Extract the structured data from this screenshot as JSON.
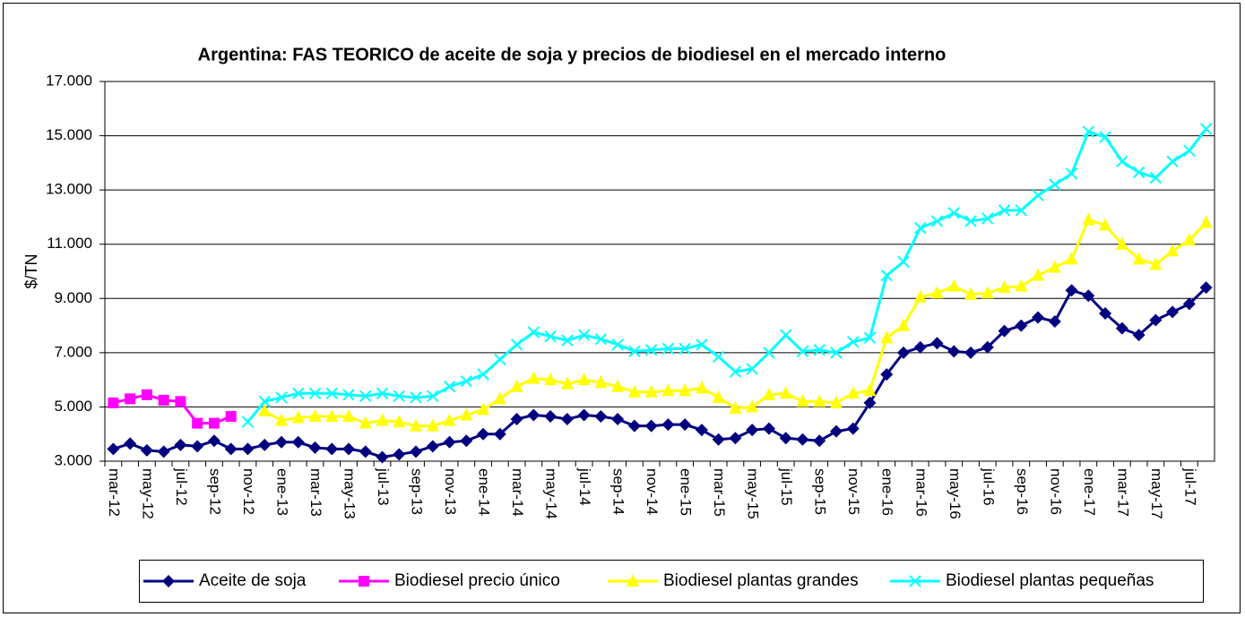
{
  "chart_data": {
    "type": "line",
    "title": "Argentina: FAS TEORICO de aceite de soja y precios de biodiesel en el mercado interno",
    "y_label": "$/TN",
    "categories": [
      "mar-12",
      null,
      "may-12",
      null,
      "jul-12",
      null,
      "sep-12",
      null,
      "nov-12",
      null,
      "ene-13",
      null,
      "mar-13",
      null,
      "may-13",
      null,
      "jul-13",
      null,
      "sep-13",
      null,
      "nov-13",
      null,
      "ene-14",
      null,
      "mar-14",
      null,
      "may-14",
      null,
      "jul-14",
      null,
      "sep-14",
      null,
      "nov-14",
      null,
      "ene-15",
      null,
      "mar-15",
      null,
      "may-15",
      null,
      "jul-15",
      null,
      "sep-15",
      null,
      "nov-15",
      null,
      "ene-16",
      null,
      "mar-16",
      null,
      "may-16",
      null,
      "jul-16",
      null,
      "sep-16",
      null,
      "nov-16",
      null,
      "ene-17",
      null,
      "mar-17",
      null,
      "may-17",
      null,
      "jul-17",
      null
    ],
    "series": [
      {
        "name": "Aceite de soja",
        "color": "#000080",
        "marker": "diamond",
        "values": [
          3450,
          3650,
          3400,
          3350,
          3600,
          3550,
          3750,
          3450,
          3450,
          3600,
          3700,
          3700,
          3500,
          3450,
          3450,
          3350,
          3150,
          3250,
          3350,
          3550,
          3700,
          3750,
          4000,
          4000,
          4550,
          4700,
          4650,
          4550,
          4700,
          4650,
          4550,
          4300,
          4300,
          4350,
          4350,
          4150,
          3800,
          3850,
          4150,
          4200,
          3850,
          3800,
          3750,
          4100,
          4200,
          5150,
          6200,
          7000,
          7200,
          7350,
          7050,
          7000,
          7200,
          7800,
          8000,
          8300,
          8150,
          9300,
          9100,
          8450,
          7900,
          7650,
          8200,
          8500,
          8800,
          9400
        ]
      },
      {
        "name": "Biodiesel precio único",
        "color": "#ff00ff",
        "marker": "square",
        "values": [
          5150,
          5300,
          5450,
          5250,
          5200,
          4400,
          4400,
          4650,
          null,
          null,
          null,
          null,
          null,
          null,
          null,
          null,
          null,
          null,
          null,
          null,
          null,
          null,
          null,
          null,
          null,
          null,
          null,
          null,
          null,
          null,
          null,
          null,
          null,
          null,
          null,
          null,
          null,
          null,
          null,
          null,
          null,
          null,
          null,
          null,
          null,
          null,
          null,
          null,
          null,
          null,
          null,
          null,
          null,
          null,
          null,
          null,
          null,
          null,
          null,
          null,
          null,
          null,
          null,
          null,
          null,
          null
        ]
      },
      {
        "name": "Biodiesel plantas grandes",
        "color": "#ffff00",
        "marker": "triangle",
        "values": [
          null,
          null,
          null,
          null,
          null,
          null,
          null,
          null,
          null,
          4850,
          4500,
          4600,
          4650,
          4650,
          4650,
          4400,
          4500,
          4450,
          4300,
          4300,
          4500,
          4700,
          4900,
          5300,
          5750,
          6050,
          6000,
          5850,
          6000,
          5900,
          5750,
          5550,
          5550,
          5600,
          5600,
          5700,
          5350,
          4950,
          5000,
          5450,
          5500,
          5200,
          5200,
          5150,
          5500,
          5600,
          7550,
          8000,
          9050,
          9200,
          9450,
          9150,
          9200,
          9400,
          9450,
          9850,
          10150,
          10450,
          11900,
          11700,
          11000,
          10450,
          10250,
          10750,
          11150,
          11800
        ]
      },
      {
        "name": "Biodiesel plantas pequeñas",
        "color": "#00ffff",
        "marker": "x",
        "values": [
          null,
          null,
          null,
          null,
          null,
          null,
          null,
          null,
          4450,
          5200,
          5350,
          5500,
          5500,
          5500,
          5450,
          5400,
          5500,
          5400,
          5350,
          5400,
          5750,
          5950,
          6200,
          6750,
          7300,
          7750,
          7600,
          7450,
          7650,
          7500,
          7300,
          7050,
          7100,
          7150,
          7150,
          7300,
          6850,
          6300,
          6400,
          7000,
          7650,
          7050,
          7100,
          7000,
          7400,
          7550,
          9850,
          10350,
          11600,
          11850,
          12150,
          11850,
          11950,
          12250,
          12250,
          12800,
          13200,
          13600,
          15150,
          14950,
          14050,
          13650,
          13450,
          14050,
          14450,
          15250
        ]
      }
    ],
    "ylim": [
      3000,
      17000
    ],
    "yticks": [
      {
        "value": 3000,
        "label": "3.000"
      },
      {
        "value": 5000,
        "label": "5.000"
      },
      {
        "value": 7000,
        "label": "7.000"
      },
      {
        "value": 9000,
        "label": "9.000"
      },
      {
        "value": 11000,
        "label": "11.000"
      },
      {
        "value": 13000,
        "label": "13.000"
      },
      {
        "value": 15000,
        "label": "15.000"
      },
      {
        "value": 17000,
        "label": "17.000"
      }
    ],
    "grid": true,
    "legend": "bottom"
  }
}
